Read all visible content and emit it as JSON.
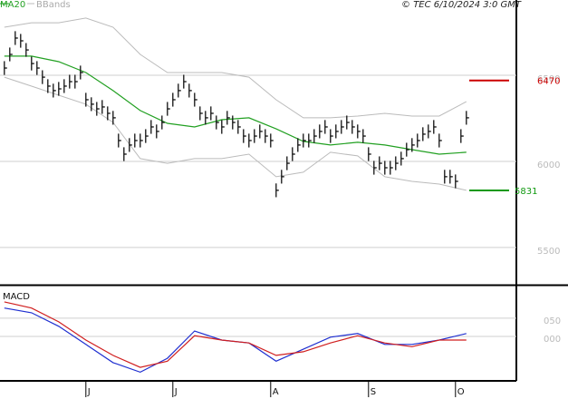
{
  "chart_data": {
    "type": "ohlc",
    "source": "© TEC 6/10/2024 3:0 GMT",
    "xlim": [
      -0.8,
      94.2
    ],
    "xticks": [
      {
        "value": 15,
        "label": "J"
      },
      {
        "value": 31,
        "label": "J"
      },
      {
        "value": 49,
        "label": "A"
      },
      {
        "value": 67,
        "label": "S"
      },
      {
        "value": 83,
        "label": "O"
      }
    ],
    "ylim": [
      5289,
      6937
    ],
    "yticks": [
      5500,
      6000,
      6500
    ],
    "grid": true,
    "bars": {
      "color": "#111111",
      "high": [
        6582,
        6661,
        6756,
        6740,
        6687,
        6608,
        6582,
        6529,
        6477,
        6451,
        6461,
        6477,
        6503,
        6503,
        6556,
        6398,
        6372,
        6345,
        6356,
        6319,
        6293,
        6161,
        6082,
        6135,
        6161,
        6161,
        6187,
        6240,
        6214,
        6266,
        6345,
        6398,
        6451,
        6503,
        6451,
        6398,
        6319,
        6293,
        6319,
        6266,
        6240,
        6293,
        6266,
        6240,
        6187,
        6161,
        6187,
        6214,
        6187,
        6161,
        5872,
        5951,
        6029,
        6082,
        6135,
        6161,
        6161,
        6187,
        6214,
        6240,
        6187,
        6214,
        6240,
        6266,
        6240,
        6214,
        6187,
        6082,
        6003,
        6029,
        6003,
        6003,
        6029,
        6056,
        6108,
        6135,
        6161,
        6198,
        6214,
        6240,
        6161,
        5951,
        5951,
        5924,
        6187,
        6293
      ],
      "low": [
        6502,
        6581,
        6676,
        6660,
        6607,
        6528,
        6502,
        6449,
        6397,
        6371,
        6381,
        6397,
        6423,
        6423,
        6476,
        6318,
        6292,
        6265,
        6276,
        6239,
        6213,
        6081,
        6002,
        6055,
        6081,
        6081,
        6107,
        6160,
        6134,
        6186,
        6265,
        6318,
        6371,
        6423,
        6371,
        6318,
        6239,
        6213,
        6239,
        6186,
        6160,
        6213,
        6186,
        6160,
        6107,
        6081,
        6107,
        6134,
        6107,
        6081,
        5792,
        5871,
        5949,
        6002,
        6055,
        6081,
        6081,
        6107,
        6134,
        6160,
        6107,
        6134,
        6160,
        6186,
        6160,
        6134,
        6107,
        6002,
        5923,
        5949,
        5923,
        5923,
        5949,
        5976,
        6028,
        6055,
        6081,
        6118,
        6134,
        6160,
        6081,
        5871,
        5871,
        5844,
        6107,
        6213
      ],
      "close": [
        6542,
        6621,
        6716,
        6700,
        6647,
        6568,
        6542,
        6489,
        6437,
        6411,
        6421,
        6437,
        6463,
        6463,
        6516,
        6358,
        6332,
        6305,
        6316,
        6279,
        6253,
        6121,
        6042,
        6095,
        6121,
        6121,
        6147,
        6200,
        6174,
        6226,
        6305,
        6358,
        6411,
        6463,
        6411,
        6358,
        6279,
        6253,
        6279,
        6226,
        6200,
        6253,
        6226,
        6200,
        6147,
        6121,
        6147,
        6174,
        6147,
        6121,
        5832,
        5911,
        5989,
        6042,
        6095,
        6121,
        6121,
        6147,
        6174,
        6200,
        6147,
        6174,
        6200,
        6226,
        6200,
        6174,
        6147,
        6042,
        5963,
        5989,
        5963,
        5963,
        5989,
        6016,
        6068,
        6095,
        6121,
        6158,
        6174,
        6200,
        6121,
        5911,
        5911,
        5884,
        6147,
        6253
      ]
    },
    "overlay_x": [
      0,
      5,
      10,
      15,
      20,
      25,
      30,
      35,
      40,
      45,
      50,
      55,
      60,
      65,
      70,
      75,
      80,
      85
    ],
    "ma": {
      "name": "MA20",
      "color": "#22a022",
      "values": [
        6611,
        6611,
        6579,
        6516,
        6411,
        6295,
        6221,
        6200,
        6242,
        6253,
        6189,
        6116,
        6095,
        6111,
        6095,
        6068,
        6042,
        6053
      ]
    },
    "bands": {
      "name": "BBands",
      "color": "#bbbbbb",
      "upper": [
        6779,
        6805,
        6805,
        6832,
        6779,
        6621,
        6516,
        6516,
        6516,
        6489,
        6358,
        6253,
        6253,
        6263,
        6279,
        6263,
        6263,
        6347
      ],
      "lower": [
        6489,
        6437,
        6384,
        6332,
        6226,
        6016,
        5989,
        6016,
        6016,
        6042,
        5911,
        5937,
        6053,
        6032,
        5911,
        5884,
        5868,
        5832
      ]
    },
    "levels": [
      {
        "value": 6470,
        "color": "#cc0000"
      },
      {
        "value": 5831,
        "color": "#119911"
      }
    ],
    "macd": {
      "title": "MACD",
      "ylim": [
        -122,
        137
      ],
      "yticks": [
        {
          "value": 0,
          "label": "000"
        },
        {
          "value": 50,
          "label": "050"
        }
      ],
      "series": [
        {
          "color": "#1f2fd0",
          "values": [
            78,
            65,
            28,
            -22,
            -72,
            -98,
            -60,
            15,
            -10,
            -18,
            -68,
            -35,
            -2,
            8,
            -22,
            -22,
            -10,
            8
          ]
        },
        {
          "color": "#d01f1f",
          "values": [
            95,
            78,
            40,
            -10,
            -52,
            -85,
            -68,
            2,
            -10,
            -18,
            -52,
            -42,
            -18,
            2,
            -18,
            -28,
            -10,
            -10
          ]
        }
      ]
    }
  }
}
